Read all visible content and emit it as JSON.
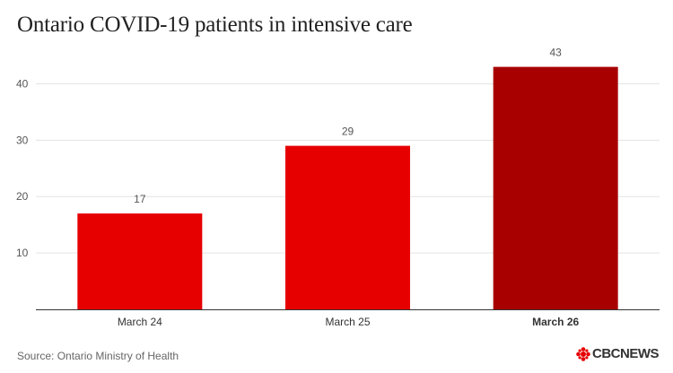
{
  "title": "Ontario COVID-19 patients in intensive care",
  "source": "Source: Ontario Ministry of Health",
  "logo": "CBCNEWS",
  "chart_data": {
    "type": "bar",
    "title": "Ontario COVID-19 patients in intensive care",
    "categories": [
      "March 24",
      "March 25",
      "March 26"
    ],
    "values": [
      17,
      29,
      43
    ],
    "highlight_index": 2,
    "yticks": [
      10,
      20,
      30,
      40
    ],
    "ylim": [
      0,
      45
    ],
    "grid": true,
    "colors": {
      "bar": "#e60000",
      "highlight": "#a80000",
      "grid": "#e3e3e3",
      "axis": "#333333"
    }
  }
}
